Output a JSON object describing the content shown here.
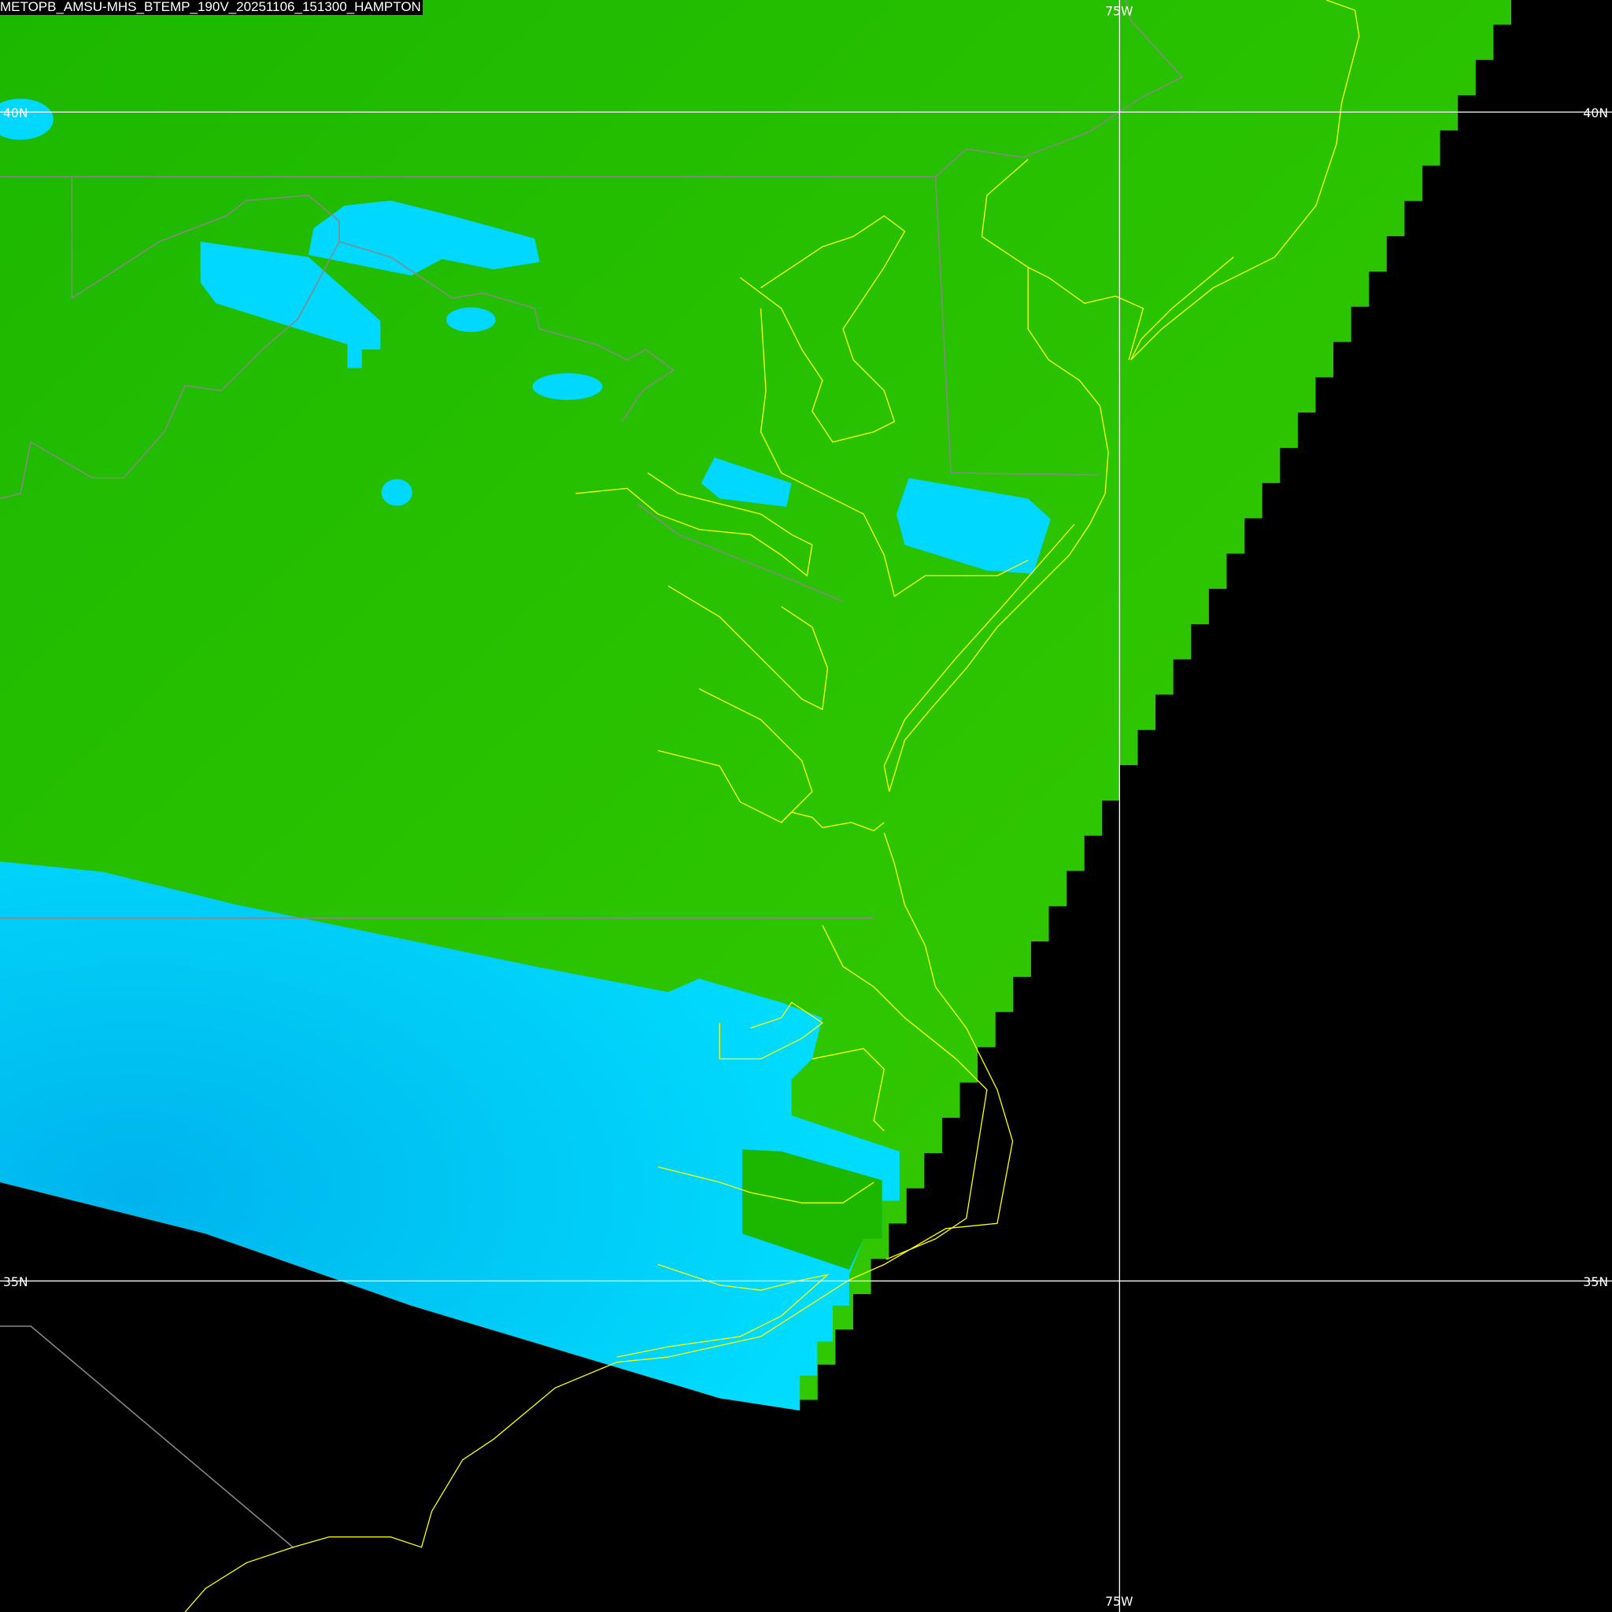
{
  "title": "METOPB_AMSU-MHS_BTEMP_190V_20251106_151300_HAMPTON",
  "grid": {
    "lon_label_top": "75W",
    "lon_label_bottom": "75W",
    "lat_label_40_left": "40N",
    "lat_label_40_right": "40N",
    "lat_label_35_left": "35N",
    "lat_label_35_right": "35N"
  },
  "colors": {
    "background": "#000000",
    "green_field": "#1fbb00",
    "green_light": "#33c800",
    "cyan_field": "#00d8ff",
    "cyan_dark": "#00b4ec",
    "coastline": "#ffff00",
    "state_borders": "#808080",
    "gridlines": "#ffffff"
  }
}
